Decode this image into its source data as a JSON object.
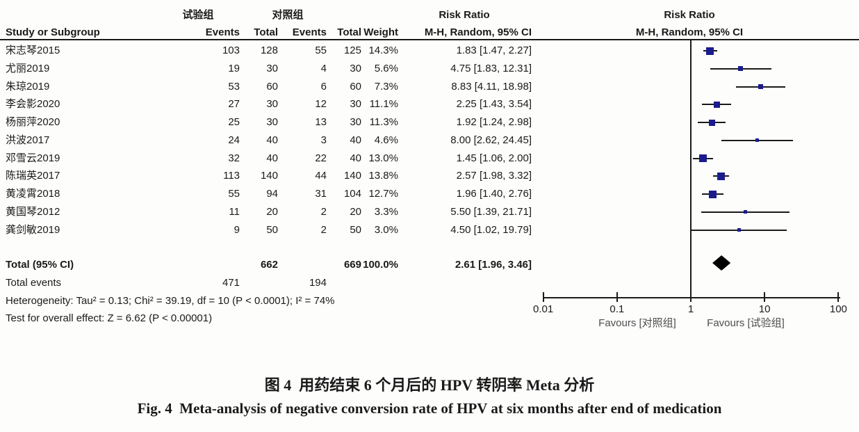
{
  "table": {
    "group_experimental": "试验组",
    "group_control": "对照组",
    "risk_ratio_header": "Risk Ratio",
    "method_header": "M-H, Random, 95% CI",
    "columns": {
      "study": "Study or Subgroup",
      "events": "Events",
      "total": "Total",
      "weight": "Weight"
    }
  },
  "chart_data": {
    "type": "forest",
    "effect_measure": "Risk Ratio",
    "method": "M-H, Random, 95% CI",
    "scale": "log",
    "xlim": [
      0.01,
      100
    ],
    "x_ticks": [
      "0.01",
      "0.1",
      "1",
      "10",
      "100"
    ],
    "favours_left": "Favours [对照组]",
    "favours_right": "Favours [试验组]",
    "studies": [
      {
        "name": "宋志琴2015",
        "exp_events": "103",
        "exp_total": "128",
        "ctrl_events": "55",
        "ctrl_total": "125",
        "weight": "14.3%",
        "rr": 1.83,
        "lo": 1.47,
        "hi": 2.27,
        "ci_label": "1.83 [1.47, 2.27]"
      },
      {
        "name": "尤丽2019",
        "exp_events": "19",
        "exp_total": "30",
        "ctrl_events": "4",
        "ctrl_total": "30",
        "weight": "5.6%",
        "rr": 4.75,
        "lo": 1.83,
        "hi": 12.31,
        "ci_label": "4.75 [1.83, 12.31]"
      },
      {
        "name": "朱琼2019",
        "exp_events": "53",
        "exp_total": "60",
        "ctrl_events": "6",
        "ctrl_total": "60",
        "weight": "7.3%",
        "rr": 8.83,
        "lo": 4.11,
        "hi": 18.98,
        "ci_label": "8.83 [4.11, 18.98]"
      },
      {
        "name": "李会影2020",
        "exp_events": "27",
        "exp_total": "30",
        "ctrl_events": "12",
        "ctrl_total": "30",
        "weight": "11.1%",
        "rr": 2.25,
        "lo": 1.43,
        "hi": 3.54,
        "ci_label": "2.25 [1.43, 3.54]"
      },
      {
        "name": "杨丽萍2020",
        "exp_events": "25",
        "exp_total": "30",
        "ctrl_events": "13",
        "ctrl_total": "30",
        "weight": "11.3%",
        "rr": 1.92,
        "lo": 1.24,
        "hi": 2.98,
        "ci_label": "1.92 [1.24, 2.98]"
      },
      {
        "name": "洪波2017",
        "exp_events": "24",
        "exp_total": "40",
        "ctrl_events": "3",
        "ctrl_total": "40",
        "weight": "4.6%",
        "rr": 8.0,
        "lo": 2.62,
        "hi": 24.45,
        "ci_label": "8.00 [2.62, 24.45]"
      },
      {
        "name": "邓雪云2019",
        "exp_events": "32",
        "exp_total": "40",
        "ctrl_events": "22",
        "ctrl_total": "40",
        "weight": "13.0%",
        "rr": 1.45,
        "lo": 1.06,
        "hi": 2.0,
        "ci_label": "1.45 [1.06, 2.00]"
      },
      {
        "name": "陈瑞英2017",
        "exp_events": "113",
        "exp_total": "140",
        "ctrl_events": "44",
        "ctrl_total": "140",
        "weight": "13.8%",
        "rr": 2.57,
        "lo": 1.98,
        "hi": 3.32,
        "ci_label": "2.57 [1.98, 3.32]"
      },
      {
        "name": "黄凌霄2018",
        "exp_events": "55",
        "exp_total": "94",
        "ctrl_events": "31",
        "ctrl_total": "104",
        "weight": "12.7%",
        "rr": 1.96,
        "lo": 1.4,
        "hi": 2.76,
        "ci_label": "1.96 [1.40, 2.76]"
      },
      {
        "name": "黄国琴2012",
        "exp_events": "11",
        "exp_total": "20",
        "ctrl_events": "2",
        "ctrl_total": "20",
        "weight": "3.3%",
        "rr": 5.5,
        "lo": 1.39,
        "hi": 21.71,
        "ci_label": "5.50 [1.39, 21.71]"
      },
      {
        "name": "龚剑敏2019",
        "exp_events": "9",
        "exp_total": "50",
        "ctrl_events": "2",
        "ctrl_total": "50",
        "weight": "3.0%",
        "rr": 4.5,
        "lo": 1.02,
        "hi": 19.79,
        "ci_label": "4.50 [1.02, 19.79]"
      }
    ],
    "total": {
      "label": "Total (95% CI)",
      "exp_total": "662",
      "ctrl_total": "669",
      "weight": "100.0%",
      "rr": 2.61,
      "lo": 1.96,
      "hi": 3.46,
      "ci_label": "2.61 [1.96, 3.46]"
    },
    "total_events": {
      "label": "Total events",
      "exp": "471",
      "ctrl": "194"
    },
    "heterogeneity": "Heterogeneity: Tau² = 0.13; Chi² = 39.19, df = 10 (P < 0.0001); I² = 74%",
    "overall_effect": "Test for overall effect: Z = 6.62 (P < 0.00001)"
  },
  "captions": {
    "zh": "图 4  用药结束 6 个月后的 HPV 转阴率 Meta 分析",
    "en": "Fig. 4  Meta-analysis of negative conversion rate of HPV at six months after end of medication"
  },
  "colors": {
    "square": "#1b1b8e",
    "diamond": "#000000",
    "line": "#1a1a1a"
  }
}
